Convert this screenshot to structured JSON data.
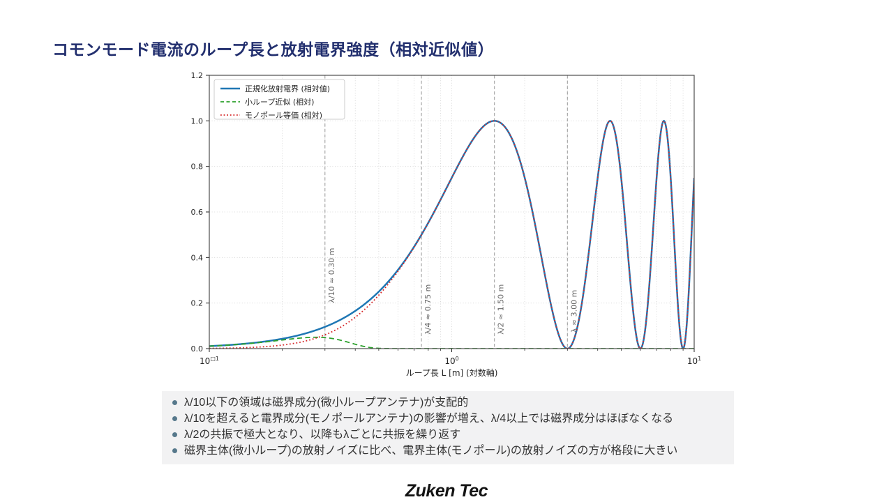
{
  "slide": {
    "title": "コモンモード電流のループ長と放射電界強度（相対近似値）",
    "footer_logo": "Zuken Tec"
  },
  "chart_data": {
    "type": "line",
    "title": "",
    "xlabel": "ループ長 L [m] (対数軸)",
    "ylabel": "",
    "x_scale": "log",
    "xlim": [
      0.1,
      10
    ],
    "ylim": [
      0,
      1.2
    ],
    "grid": "on",
    "legend_position": "upper left",
    "x_major_ticks": [
      {
        "value": 0.1,
        "base": "10",
        "sup": "□1"
      },
      {
        "value": 1,
        "base": "10",
        "sup": "0"
      },
      {
        "value": 10,
        "base": "10",
        "sup": "1"
      }
    ],
    "y_ticks": [
      {
        "value": 0.0,
        "label": "0.0"
      },
      {
        "value": 0.2,
        "label": "0.2"
      },
      {
        "value": 0.4,
        "label": "0.4"
      },
      {
        "value": 0.6,
        "label": "0.6"
      },
      {
        "value": 0.8,
        "label": "0.8"
      },
      {
        "value": 1.0,
        "label": "1.0"
      },
      {
        "value": 1.2,
        "label": "1.2"
      }
    ],
    "grid_y": [
      0.2,
      0.4,
      0.6,
      0.8,
      1.0
    ],
    "lambda_m": 3.0,
    "series": [
      {
        "id": "normalized",
        "label": "正規化放射電界 (相対値)",
        "color": "#1f77b4",
        "style": "solid",
        "width": 2.5,
        "formula": "sin^2(pi*L/lambda)"
      },
      {
        "id": "small_loop",
        "label": "小ループ近似 (相対)",
        "color": "#2ca02c",
        "style": "dashed",
        "width": 1.8,
        "formula": "sin^2(pi*L/lambda)*exp(-(L/0.33)^4)",
        "rolloff_m": 0.33,
        "rolloff_power": 4
      },
      {
        "id": "monopole",
        "label": "モノポール等価 (相対)",
        "color": "#d62728",
        "style": "dotted",
        "width": 1.8,
        "formula": "sin^2(pi*L/lambda)*(1-exp(-(L/0.3)^2))",
        "onset_m": 0.3,
        "onset_power": 2
      }
    ],
    "key_points": {
      "peaks_L_m": [
        1.5,
        4.5,
        7.5
      ],
      "nulls_L_m": [
        3.0,
        6.0,
        9.0
      ],
      "peak_value": 1.0,
      "value_at_quarter_wave": 0.5,
      "value_at_right_edge": 0.75,
      "small_loop_peak": {
        "L_m": 0.3,
        "value": 0.048
      }
    },
    "annotations": [
      {
        "label": "λ/10 ≈ 0.30 m",
        "x_m": 0.3,
        "label_bottom_value": 0.2
      },
      {
        "label": "λ/4 ≈ 0.75 m",
        "x_m": 0.75,
        "label_bottom_value": 0.062
      },
      {
        "label": "λ/2 ≈ 1.50 m",
        "x_m": 1.5,
        "label_bottom_value": 0.062
      },
      {
        "label": "λ ≈ 3.00 m",
        "x_m": 3.0,
        "label_bottom_value": 0.07
      }
    ]
  },
  "bullets": [
    "λ/10以下の領域は磁界成分(微小ループアンテナ)が支配的",
    "λ/10を超えると電界成分(モノポールアンテナ)の影響が増え、λ/4以上では磁界成分はほぼなくなる",
    "λ/2の共振で極大となり、以降もλごとに共振を繰り返す",
    "磁界主体(微小ループ)の放射ノイズに比べ、電界主体(モノポール)の放射ノイズの方が格段に大きい"
  ],
  "colors": {
    "title": "#222f6e",
    "bullet_dot": "#56788b",
    "bullet_bg": "#f2f2f3",
    "bullet_text": "#333333",
    "annotation_line": "#999999",
    "annotation_text": "#666666",
    "axis": "#4d4d4d",
    "grid": "#d0d0d0",
    "tick_text": "#262626",
    "legend_border": "#cccccc",
    "footer_text": "#141414"
  }
}
